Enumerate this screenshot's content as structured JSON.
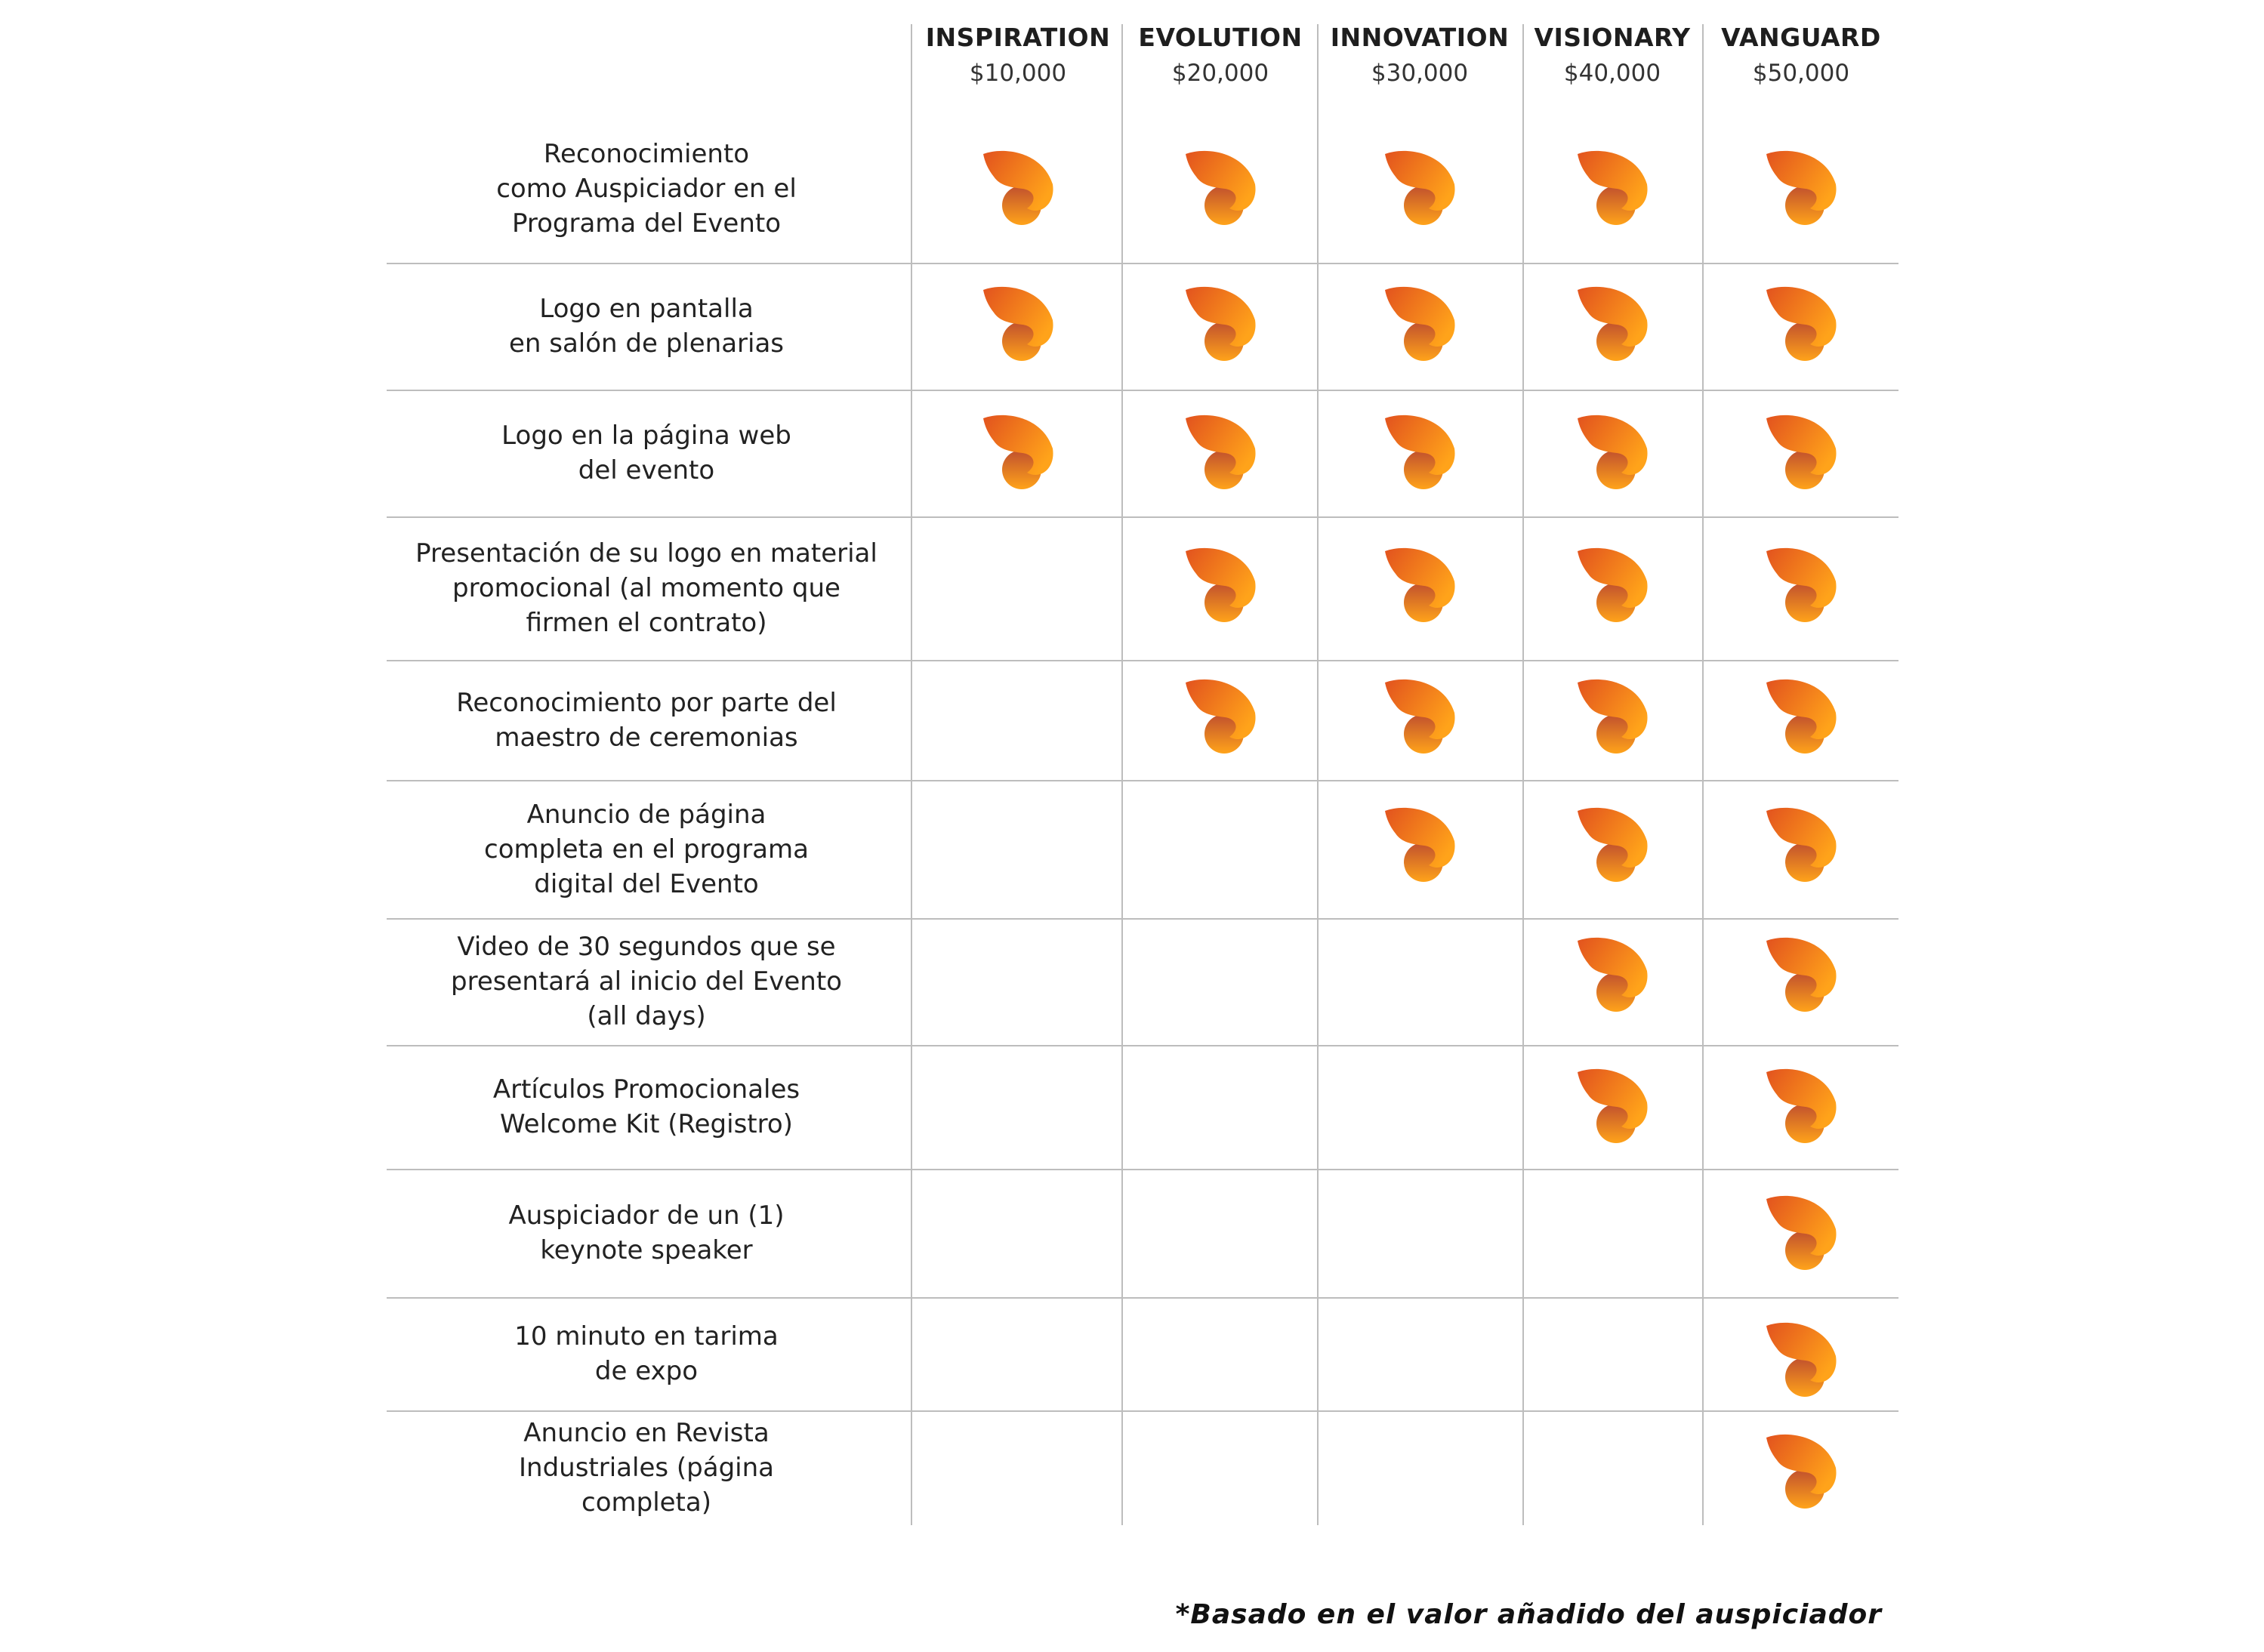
{
  "tiers": [
    {
      "name": "INSPIRATION",
      "price": "$10,000"
    },
    {
      "name": "EVOLUTION",
      "price": "$20,000"
    },
    {
      "name": "INNOVATION",
      "price": "$30,000"
    },
    {
      "name": "VISIONARY",
      "price": "$40,000"
    },
    {
      "name": "VANGUARD",
      "price": "$50,000"
    }
  ],
  "benefits": [
    {
      "label": "Reconocimiento\ncomo Auspiciador en el\nPrograma del Evento",
      "included": [
        true,
        true,
        true,
        true,
        true
      ]
    },
    {
      "label": "Logo en pantalla\nen salón de plenarias",
      "included": [
        true,
        true,
        true,
        true,
        true
      ]
    },
    {
      "label": "Logo en la página web\ndel evento",
      "included": [
        true,
        true,
        true,
        true,
        true
      ]
    },
    {
      "label": "Presentación de su logo en material\npromocional (al momento que\nfirmen el contrato)",
      "included": [
        false,
        true,
        true,
        true,
        true
      ]
    },
    {
      "label": "Reconocimiento por parte del\nmaestro de ceremonias",
      "included": [
        false,
        true,
        true,
        true,
        true
      ]
    },
    {
      "label": "Anuncio de página\ncompleta en el programa\ndigital del Evento",
      "included": [
        false,
        false,
        true,
        true,
        true
      ]
    },
    {
      "label": "Video de 30 segundos que se\npresentará al inicio del Evento\n(all days)",
      "included": [
        false,
        false,
        false,
        true,
        true
      ]
    },
    {
      "label": "Artículos Promocionales\nWelcome Kit (Registro)",
      "included": [
        false,
        false,
        false,
        true,
        true
      ]
    },
    {
      "label": "Auspiciador de un (1)\nkeynote speaker",
      "included": [
        false,
        false,
        false,
        false,
        true
      ]
    },
    {
      "label": "10 minuto en tarima\nde expo",
      "included": [
        false,
        false,
        false,
        false,
        true
      ]
    },
    {
      "label": "Anuncio en Revista\nIndustriales (página\ncompleta)",
      "included": [
        false,
        false,
        false,
        false,
        true
      ]
    }
  ],
  "footnote": "*Basado en el valor añadido del auspiciador",
  "icon": "orange-flame-check-icon",
  "colors": {
    "accent_light": "#FFA31A",
    "accent_dark": "#E2521E",
    "accent_bottom": "#C0502E",
    "rule": "#BDBDBD"
  }
}
